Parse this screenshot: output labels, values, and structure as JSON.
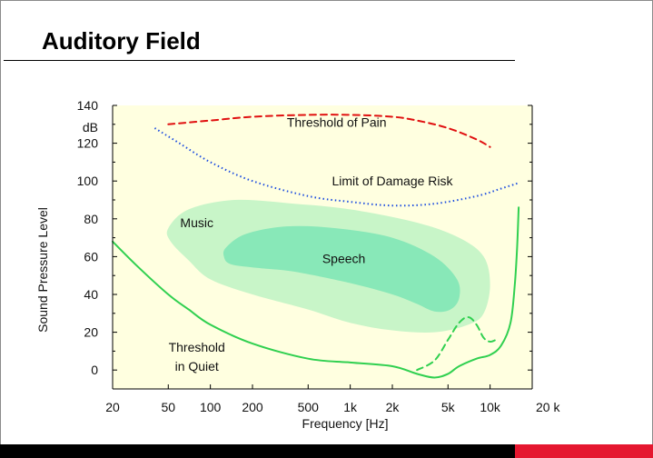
{
  "slide": {
    "title": "Auditory Field",
    "colors": {
      "accent_bar": "#e5172f",
      "footer_bar": "#000000"
    }
  },
  "chart_data": {
    "type": "line",
    "title": "",
    "xlabel": "Frequency [Hz]",
    "ylabel": "Sound Pressure Level",
    "y_unit_label": "dB",
    "x_scale": "log",
    "xlim": [
      20,
      20000
    ],
    "ylim": [
      -10,
      140
    ],
    "x_ticks": [
      {
        "value": 20,
        "label": "20"
      },
      {
        "value": 50,
        "label": "50"
      },
      {
        "value": 100,
        "label": "100"
      },
      {
        "value": 200,
        "label": "200"
      },
      {
        "value": 500,
        "label": "500"
      },
      {
        "value": 1000,
        "label": "1k"
      },
      {
        "value": 2000,
        "label": "2k"
      },
      {
        "value": 5000,
        "label": "5k"
      },
      {
        "value": 10000,
        "label": "10k"
      },
      {
        "value": 20000,
        "label": "20 k"
      }
    ],
    "y_ticks": [
      0,
      20,
      40,
      60,
      80,
      100,
      120,
      140
    ],
    "background": "#ffffe0",
    "regions": [
      {
        "name": "Music",
        "color": "#c8f5c8",
        "points": [
          [
            50,
            75
          ],
          [
            70,
            85
          ],
          [
            150,
            90
          ],
          [
            400,
            88
          ],
          [
            1000,
            85
          ],
          [
            3000,
            78
          ],
          [
            6000,
            70
          ],
          [
            9000,
            60
          ],
          [
            10000,
            45
          ],
          [
            9000,
            30
          ],
          [
            7000,
            24
          ],
          [
            4000,
            20
          ],
          [
            2000,
            21
          ],
          [
            1000,
            25
          ],
          [
            500,
            32
          ],
          [
            200,
            40
          ],
          [
            100,
            48
          ],
          [
            70,
            58
          ],
          [
            52,
            68
          ]
        ]
      },
      {
        "name": "Speech",
        "color": "#88e8b8",
        "points": [
          [
            130,
            65
          ],
          [
            180,
            72
          ],
          [
            350,
            76
          ],
          [
            800,
            75
          ],
          [
            2000,
            70
          ],
          [
            4000,
            60
          ],
          [
            5800,
            48
          ],
          [
            6000,
            38
          ],
          [
            5200,
            32
          ],
          [
            4000,
            31
          ],
          [
            3000,
            35
          ],
          [
            2000,
            40
          ],
          [
            1000,
            46
          ],
          [
            400,
            52
          ],
          [
            220,
            54
          ],
          [
            140,
            56
          ],
          [
            125,
            60
          ]
        ]
      }
    ],
    "series": [
      {
        "name": "Threshold of Pain",
        "color": "#e01010",
        "style": "dashed",
        "points": [
          [
            50,
            130
          ],
          [
            100,
            132
          ],
          [
            200,
            134
          ],
          [
            500,
            135
          ],
          [
            1000,
            135
          ],
          [
            2000,
            134
          ],
          [
            3000,
            132
          ],
          [
            5000,
            128
          ],
          [
            8000,
            122
          ],
          [
            10000,
            118
          ]
        ]
      },
      {
        "name": "Limit of Damage Risk",
        "color": "#2050e0",
        "style": "dotted",
        "points": [
          [
            40,
            128
          ],
          [
            60,
            120
          ],
          [
            100,
            110
          ],
          [
            200,
            100
          ],
          [
            500,
            92
          ],
          [
            1000,
            89
          ],
          [
            2000,
            87
          ],
          [
            4000,
            88
          ],
          [
            8000,
            92
          ],
          [
            12000,
            96
          ],
          [
            16000,
            99
          ]
        ]
      },
      {
        "name": "Threshold in Quiet",
        "color": "#30d050",
        "style": "solid",
        "points": [
          [
            20,
            68
          ],
          [
            30,
            55
          ],
          [
            50,
            40
          ],
          [
            70,
            32
          ],
          [
            100,
            24
          ],
          [
            200,
            14
          ],
          [
            500,
            6
          ],
          [
            1000,
            4
          ],
          [
            2000,
            2
          ],
          [
            3000,
            -2
          ],
          [
            4000,
            -4
          ],
          [
            5000,
            -2
          ],
          [
            6000,
            2
          ],
          [
            8000,
            6
          ],
          [
            10000,
            8
          ],
          [
            12000,
            13
          ],
          [
            14000,
            25
          ],
          [
            15000,
            45
          ],
          [
            15600,
            65
          ],
          [
            16000,
            86
          ]
        ]
      },
      {
        "name": "",
        "color": "#30d050",
        "style": "dashed",
        "points": [
          [
            3000,
            0
          ],
          [
            4000,
            5
          ],
          [
            5000,
            16
          ],
          [
            6000,
            25
          ],
          [
            7000,
            28
          ],
          [
            8000,
            24
          ],
          [
            9000,
            17
          ],
          [
            10000,
            15
          ],
          [
            11000,
            16
          ]
        ]
      }
    ],
    "annotations": [
      {
        "text": "Threshold of Pain",
        "x": 800,
        "y": 131
      },
      {
        "text": "Limit of Damage Risk",
        "x": 2000,
        "y": 100
      },
      {
        "text": "Music",
        "x": 80,
        "y": 78
      },
      {
        "text": "Speech",
        "x": 900,
        "y": 59
      },
      {
        "text": "Threshold",
        "x": 80,
        "y": 12
      },
      {
        "text": "in Quiet",
        "x": 80,
        "y": 2
      }
    ]
  }
}
